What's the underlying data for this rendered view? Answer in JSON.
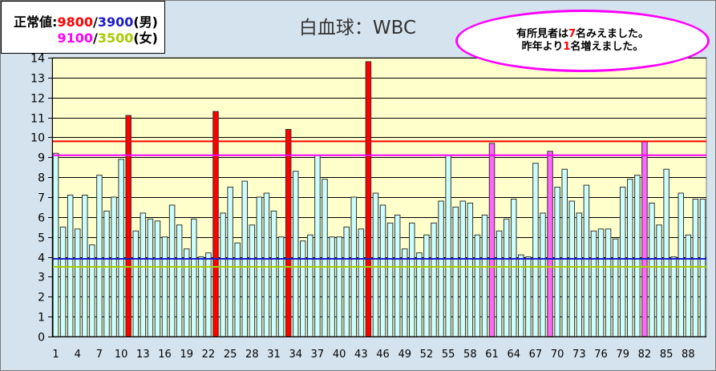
{
  "legend": {
    "label": "正常値:",
    "male": {
      "upper": "9800",
      "sep": "/",
      "lower": "3900",
      "suffix": "(男)"
    },
    "female": {
      "upper": "9100",
      "sep": "/",
      "lower": "3500",
      "suffix": "(女)"
    }
  },
  "callout": {
    "line1": {
      "before": "有所見者は",
      "num": "7",
      "after": "名みえました。"
    },
    "line2": {
      "before": "昨年より",
      "num": "1",
      "after": "名増えました。"
    },
    "border_color": "#ff00ff",
    "num_color": "#ff0000"
  },
  "chart_data": {
    "type": "bar",
    "title": "白血球：WBC",
    "x": [
      1,
      2,
      3,
      4,
      5,
      6,
      7,
      8,
      9,
      10,
      11,
      12,
      13,
      14,
      15,
      16,
      17,
      18,
      19,
      20,
      21,
      22,
      23,
      24,
      25,
      26,
      27,
      28,
      29,
      30,
      31,
      32,
      33,
      34,
      35,
      36,
      37,
      38,
      39,
      40,
      41,
      42,
      43,
      44,
      45,
      46,
      47,
      48,
      49,
      50,
      51,
      52,
      53,
      54,
      55,
      56,
      57,
      58,
      59,
      60,
      61,
      62,
      63,
      64,
      65,
      66,
      67,
      68,
      69,
      70,
      71,
      72,
      73,
      74,
      75,
      76,
      77,
      78,
      79,
      80,
      81,
      82,
      83,
      84,
      85,
      86,
      87,
      88,
      89,
      90
    ],
    "xticks": [
      1,
      4,
      7,
      10,
      13,
      16,
      19,
      22,
      25,
      28,
      31,
      34,
      37,
      40,
      43,
      46,
      49,
      52,
      55,
      58,
      61,
      64,
      67,
      70,
      73,
      76,
      79,
      82,
      85,
      88
    ],
    "ylim": [
      0,
      14
    ],
    "yticks": [
      0,
      1,
      2,
      3,
      4,
      5,
      6,
      7,
      8,
      9,
      10,
      11,
      12,
      13,
      14
    ],
    "values": [
      9.2,
      5.5,
      7.1,
      5.4,
      7.1,
      4.6,
      8.1,
      6.3,
      7.0,
      8.9,
      11.1,
      5.3,
      6.2,
      5.9,
      5.8,
      5.0,
      6.6,
      5.6,
      4.4,
      5.9,
      4.0,
      4.2,
      11.3,
      6.2,
      7.5,
      4.7,
      7.8,
      5.6,
      7.0,
      7.2,
      6.3,
      5.0,
      10.4,
      8.3,
      4.8,
      5.1,
      9.1,
      7.9,
      5.0,
      5.0,
      5.5,
      7.0,
      5.4,
      13.8,
      7.2,
      6.6,
      5.7,
      6.1,
      4.4,
      5.7,
      4.2,
      5.1,
      5.7,
      6.8,
      9.1,
      6.5,
      6.8,
      6.7,
      5.1,
      6.1,
      9.7,
      5.3,
      5.9,
      6.9,
      4.1,
      4.0,
      8.7,
      6.2,
      9.3,
      7.5,
      8.4,
      6.8,
      6.2,
      7.6,
      5.3,
      5.4,
      5.4,
      4.9,
      7.5,
      7.9,
      8.1,
      9.8,
      6.7,
      5.6,
      8.4,
      4.0,
      7.2,
      5.1,
      6.9,
      6.9
    ],
    "bar_color": "#ccffff",
    "bar_outline": "#333333",
    "highlight_bars": [
      {
        "x": 11,
        "color": "#ff0000"
      },
      {
        "x": 23,
        "color": "#ff0000"
      },
      {
        "x": 33,
        "color": "#ff0000"
      },
      {
        "x": 44,
        "color": "#ff0000"
      },
      {
        "x": 61,
        "color": "#ff66ff"
      },
      {
        "x": 69,
        "color": "#ff66ff"
      },
      {
        "x": 82,
        "color": "#ff66ff"
      }
    ],
    "reference_lines": [
      {
        "value": 9.8,
        "color": "#ff0000"
      },
      {
        "value": 9.1,
        "color": "#ff00ff"
      },
      {
        "value": 3.9,
        "color": "#1c1cc8"
      },
      {
        "value": 3.5,
        "color": "#a8cc00"
      }
    ],
    "plot_background": "#ffffcc",
    "grid": true
  }
}
